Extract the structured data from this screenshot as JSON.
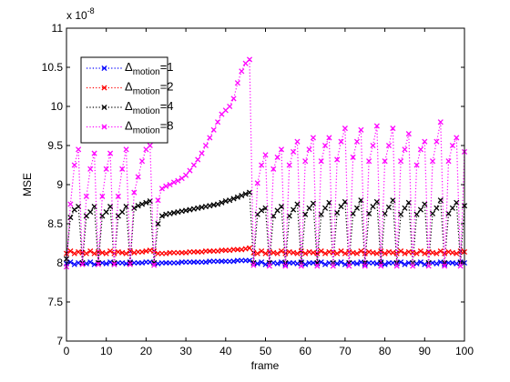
{
  "chart_data": {
    "type": "line",
    "xlabel": "frame",
    "ylabel": "MSE",
    "xlim": [
      0,
      100
    ],
    "ylim": [
      7,
      11
    ],
    "y_multiplier": "x 10",
    "y_multiplier_exponent": "-8",
    "xticks": [
      "0",
      "10",
      "20",
      "30",
      "40",
      "50",
      "60",
      "70",
      "80",
      "90",
      "100"
    ],
    "yticks": [
      "7",
      "7.5",
      "8",
      "8.5",
      "9",
      "9.5",
      "10",
      "10.5",
      "11"
    ],
    "grid": false,
    "legend_position": "top-left",
    "line_style": "dotted",
    "marker": "x",
    "series": [
      {
        "delta": "Δ",
        "subscript": "motion",
        "value": "=1",
        "color": "#0000ff",
        "values": [
          7.99,
          8.01,
          7.98,
          8.0,
          8.0,
          7.99,
          8.01,
          7.98,
          8.0,
          8.0,
          7.99,
          8.01,
          7.98,
          8.0,
          8.0,
          7.99,
          8.01,
          8.0,
          8.0,
          8.0,
          8.01,
          8.01,
          8.0,
          7.99,
          8.0,
          8.0,
          8.0,
          8.0,
          8.0,
          8.01,
          8.01,
          8.01,
          8.01,
          8.01,
          8.01,
          8.01,
          8.02,
          8.02,
          8.02,
          8.02,
          8.02,
          8.02,
          8.02,
          8.03,
          8.03,
          8.03,
          8.03,
          8.0,
          7.99,
          8.01,
          7.98,
          8.0,
          8.0,
          7.99,
          8.01,
          7.98,
          8.0,
          8.0,
          7.99,
          8.01,
          7.98,
          8.0,
          8.0,
          7.99,
          8.01,
          7.98,
          8.0,
          8.0,
          7.99,
          8.01,
          7.98,
          8.0,
          8.0,
          7.99,
          8.01,
          7.98,
          8.0,
          8.0,
          7.99,
          8.01,
          7.98,
          8.0,
          8.0,
          7.99,
          8.01,
          7.98,
          8.0,
          8.0,
          7.99,
          8.01,
          7.98,
          8.0,
          8.0,
          7.99,
          8.01,
          7.98,
          8.0,
          8.0,
          7.99,
          8.01,
          8.0
        ]
      },
      {
        "delta": "Δ",
        "subscript": "motion",
        "value": "=2",
        "color": "#ff0000",
        "values": [
          8.12,
          8.15,
          8.12,
          8.14,
          8.13,
          8.12,
          8.15,
          8.12,
          8.14,
          8.13,
          8.12,
          8.15,
          8.12,
          8.14,
          8.13,
          8.12,
          8.15,
          8.13,
          8.14,
          8.14,
          8.15,
          8.16,
          8.15,
          8.12,
          8.12,
          8.12,
          8.13,
          8.13,
          8.13,
          8.13,
          8.13,
          8.14,
          8.14,
          8.14,
          8.14,
          8.15,
          8.15,
          8.15,
          8.15,
          8.16,
          8.16,
          8.16,
          8.17,
          8.17,
          8.17,
          8.18,
          8.19,
          8.13,
          8.12,
          8.15,
          8.12,
          8.14,
          8.13,
          8.12,
          8.15,
          8.12,
          8.14,
          8.13,
          8.12,
          8.15,
          8.12,
          8.14,
          8.13,
          8.12,
          8.15,
          8.12,
          8.14,
          8.13,
          8.12,
          8.15,
          8.12,
          8.14,
          8.13,
          8.12,
          8.15,
          8.12,
          8.14,
          8.13,
          8.12,
          8.15,
          8.12,
          8.14,
          8.13,
          8.12,
          8.15,
          8.12,
          8.14,
          8.13,
          8.12,
          8.15,
          8.12,
          8.14,
          8.13,
          8.12,
          8.15,
          8.12,
          8.14,
          8.13,
          8.12,
          8.15,
          8.14
        ]
      },
      {
        "delta": "Δ",
        "subscript": "motion",
        "value": "=4",
        "color": "#000000",
        "values": [
          8.05,
          8.58,
          8.68,
          8.72,
          8.0,
          8.6,
          8.65,
          8.72,
          8.0,
          8.6,
          8.65,
          8.72,
          8.0,
          8.6,
          8.65,
          8.72,
          8.0,
          8.7,
          8.73,
          8.75,
          8.77,
          8.79,
          8.0,
          8.5,
          8.6,
          8.62,
          8.63,
          8.64,
          8.65,
          8.66,
          8.67,
          8.68,
          8.69,
          8.7,
          8.71,
          8.72,
          8.73,
          8.74,
          8.75,
          8.77,
          8.79,
          8.8,
          8.82,
          8.84,
          8.86,
          8.88,
          8.9,
          8.0,
          8.62,
          8.67,
          8.7,
          8.0,
          8.6,
          8.67,
          8.72,
          8.0,
          8.6,
          8.68,
          8.75,
          8.0,
          8.62,
          8.7,
          8.76,
          8.0,
          8.62,
          8.7,
          8.77,
          8.0,
          8.64,
          8.72,
          8.78,
          8.0,
          8.63,
          8.7,
          8.8,
          8.0,
          8.63,
          8.72,
          8.78,
          8.0,
          8.63,
          8.71,
          8.8,
          8.0,
          8.62,
          8.7,
          8.77,
          8.0,
          8.62,
          8.68,
          8.75,
          8.0,
          8.63,
          8.7,
          8.8,
          8.0,
          8.63,
          8.7,
          8.77,
          8.0,
          8.73
        ]
      },
      {
        "delta": "Δ",
        "subscript": "motion",
        "value": "=8",
        "color": "#ff00ff",
        "values": [
          7.95,
          8.75,
          9.25,
          9.45,
          7.98,
          8.85,
          9.2,
          9.4,
          7.98,
          8.85,
          9.2,
          9.4,
          7.98,
          8.85,
          9.2,
          9.45,
          7.98,
          8.9,
          9.1,
          9.3,
          9.45,
          9.5,
          7.97,
          8.8,
          8.95,
          8.98,
          9.0,
          9.03,
          9.05,
          9.08,
          9.12,
          9.18,
          9.25,
          9.32,
          9.4,
          9.5,
          9.6,
          9.7,
          9.8,
          9.9,
          9.95,
          10.0,
          10.1,
          10.3,
          10.45,
          10.55,
          10.6,
          7.97,
          9.02,
          9.25,
          9.38,
          7.96,
          9.2,
          9.35,
          9.45,
          7.96,
          9.25,
          9.42,
          9.55,
          7.96,
          9.3,
          9.45,
          9.6,
          7.96,
          9.3,
          9.5,
          9.6,
          7.96,
          9.32,
          9.55,
          9.72,
          7.96,
          9.35,
          9.55,
          9.7,
          7.96,
          9.3,
          9.5,
          9.75,
          7.96,
          9.3,
          9.5,
          9.72,
          7.96,
          9.3,
          9.45,
          9.65,
          7.96,
          9.25,
          9.45,
          9.55,
          7.96,
          9.3,
          9.55,
          9.8,
          7.96,
          9.3,
          9.5,
          9.6,
          7.96,
          9.42
        ]
      }
    ]
  }
}
